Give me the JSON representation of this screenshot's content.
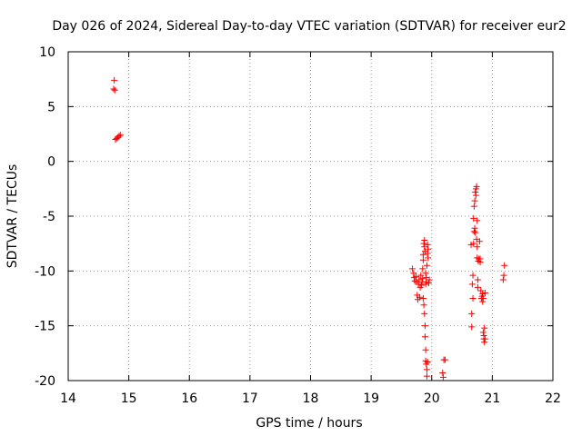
{
  "chart_data": {
    "type": "scatter",
    "title": "Day 026 of 2024, Sidereal Day-to-day VTEC variation (SDTVAR) for receiver eur2",
    "xlabel": "GPS time / hours",
    "ylabel": "SDTVAR / TECUs",
    "xlim": [
      14,
      22
    ],
    "ylim": [
      -20,
      10
    ],
    "xticks": [
      14,
      15,
      16,
      17,
      18,
      19,
      20,
      21,
      22
    ],
    "yticks": [
      -20,
      -15,
      -10,
      -5,
      0,
      5,
      10
    ],
    "grid": true,
    "marker": "+",
    "series": [
      {
        "name": "SDTVAR",
        "color": "#ff0000",
        "points": [
          [
            14.76,
            7.4
          ],
          [
            14.75,
            6.6
          ],
          [
            14.77,
            6.5
          ],
          [
            14.78,
            2.0
          ],
          [
            14.8,
            2.1
          ],
          [
            14.82,
            2.2
          ],
          [
            14.84,
            2.3
          ],
          [
            14.86,
            2.4
          ],
          [
            19.68,
            -9.8
          ],
          [
            19.7,
            -10.2
          ],
          [
            19.71,
            -10.6
          ],
          [
            19.72,
            -10.9
          ],
          [
            19.74,
            -10.5
          ],
          [
            19.75,
            -11.0
          ],
          [
            19.76,
            -12.2
          ],
          [
            19.77,
            -12.6
          ],
          [
            19.78,
            -11.2
          ],
          [
            19.79,
            -10.8
          ],
          [
            19.8,
            -12.4
          ],
          [
            19.81,
            -11.5
          ],
          [
            19.82,
            -10.4
          ],
          [
            19.83,
            -11.3
          ],
          [
            19.84,
            -11.0
          ],
          [
            19.85,
            -10.7
          ],
          [
            19.85,
            -9.8
          ],
          [
            19.86,
            -9.0
          ],
          [
            19.86,
            -8.5
          ],
          [
            19.87,
            -7.5
          ],
          [
            19.88,
            -7.2
          ],
          [
            19.88,
            -7.8
          ],
          [
            19.89,
            -8.2
          ],
          [
            19.9,
            -10.2
          ],
          [
            19.9,
            -11.2
          ],
          [
            19.91,
            -10.6
          ],
          [
            19.91,
            -11.0
          ],
          [
            19.92,
            -9.5
          ],
          [
            19.93,
            -8.4
          ],
          [
            19.93,
            -7.6
          ],
          [
            19.94,
            -8.0
          ],
          [
            19.94,
            -8.8
          ],
          [
            19.95,
            -11.1
          ],
          [
            19.96,
            -10.8
          ],
          [
            19.86,
            -12.5
          ],
          [
            19.87,
            -13.1
          ],
          [
            19.88,
            -13.9
          ],
          [
            19.89,
            -15.0
          ],
          [
            19.89,
            -16.0
          ],
          [
            19.9,
            -17.2
          ],
          [
            19.9,
            -18.2
          ],
          [
            19.91,
            -18.5
          ],
          [
            19.92,
            -19.0
          ],
          [
            19.92,
            -19.6
          ],
          [
            19.93,
            -18.3
          ],
          [
            20.18,
            -19.3
          ],
          [
            20.19,
            -19.7
          ],
          [
            20.2,
            -18.1
          ],
          [
            20.22,
            -18.1
          ],
          [
            20.65,
            -7.6
          ],
          [
            20.66,
            -13.9
          ],
          [
            20.66,
            -15.1
          ],
          [
            20.67,
            -11.2
          ],
          [
            20.68,
            -12.5
          ],
          [
            20.68,
            -10.4
          ],
          [
            20.69,
            -7.5
          ],
          [
            20.69,
            -5.2
          ],
          [
            20.7,
            -4.1
          ],
          [
            20.7,
            -6.4
          ],
          [
            20.71,
            -3.6
          ],
          [
            20.71,
            -6.1
          ],
          [
            20.72,
            -2.8
          ],
          [
            20.72,
            -6.5
          ],
          [
            20.73,
            -2.5
          ],
          [
            20.73,
            -3.1
          ],
          [
            20.74,
            -2.3
          ],
          [
            20.74,
            -7.1
          ],
          [
            20.75,
            -5.4
          ],
          [
            20.75,
            -7.8
          ],
          [
            20.75,
            -8.8
          ],
          [
            20.76,
            -10.8
          ],
          [
            20.76,
            -11.5
          ],
          [
            20.77,
            -9.1
          ],
          [
            20.78,
            -8.9
          ],
          [
            20.79,
            -7.3
          ],
          [
            20.8,
            -9.2
          ],
          [
            20.8,
            -8.9
          ],
          [
            20.81,
            -11.8
          ],
          [
            20.82,
            -12.5
          ],
          [
            20.83,
            -12.3
          ],
          [
            20.84,
            -12.8
          ],
          [
            20.84,
            -12.1
          ],
          [
            20.85,
            -12.5
          ],
          [
            20.85,
            -15.6
          ],
          [
            20.86,
            -15.9
          ],
          [
            20.86,
            -16.2
          ],
          [
            20.87,
            -16.5
          ],
          [
            20.87,
            -15.2
          ],
          [
            20.88,
            -12.0
          ],
          [
            20.88,
            -16.2
          ],
          [
            21.18,
            -10.8
          ],
          [
            21.19,
            -10.4
          ],
          [
            21.2,
            -9.5
          ]
        ]
      }
    ]
  }
}
